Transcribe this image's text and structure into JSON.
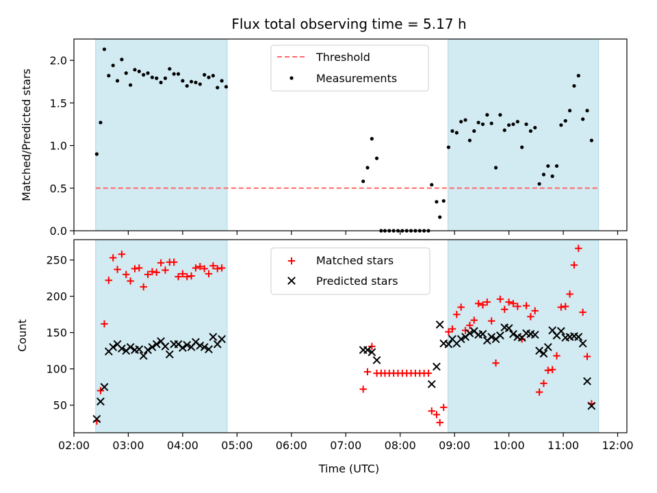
{
  "chart_data": [
    {
      "type": "scatter",
      "title": "Flux total observing time = 5.17 h",
      "xlabel": "",
      "ylabel": "Matched/Predicted stars",
      "xlim": [
        2.0,
        12.17
      ],
      "ylim": [
        0.0,
        2.25
      ],
      "yticks": [
        0.0,
        0.5,
        1.0,
        1.5,
        2.0
      ],
      "ytick_labels": [
        "0.0",
        "0.5",
        "1.0",
        "1.5",
        "2.0"
      ],
      "shaded_ranges": [
        [
          2.4,
          4.82
        ],
        [
          8.88,
          11.65
        ]
      ],
      "shade_color": "#add8e6",
      "threshold": {
        "name": "Threshold",
        "value": 0.5,
        "color": "#ff6666"
      },
      "legend": {
        "placement": "upper center",
        "entries": [
          "Threshold",
          "Measurements"
        ]
      },
      "series": [
        {
          "name": "Measurements",
          "color": "#000000",
          "marker": "dot",
          "points": [
            [
              2.42,
              0.9
            ],
            [
              2.49,
              1.27
            ],
            [
              2.56,
              2.13
            ],
            [
              2.64,
              1.82
            ],
            [
              2.72,
              1.94
            ],
            [
              2.8,
              1.76
            ],
            [
              2.88,
              2.01
            ],
            [
              2.96,
              1.85
            ],
            [
              3.04,
              1.71
            ],
            [
              3.12,
              1.89
            ],
            [
              3.2,
              1.87
            ],
            [
              3.28,
              1.83
            ],
            [
              3.36,
              1.85
            ],
            [
              3.44,
              1.8
            ],
            [
              3.52,
              1.79
            ],
            [
              3.6,
              1.74
            ],
            [
              3.68,
              1.79
            ],
            [
              3.76,
              1.9
            ],
            [
              3.84,
              1.84
            ],
            [
              3.92,
              1.84
            ],
            [
              4.0,
              1.76
            ],
            [
              4.08,
              1.7
            ],
            [
              4.16,
              1.75
            ],
            [
              4.24,
              1.74
            ],
            [
              4.32,
              1.72
            ],
            [
              4.4,
              1.83
            ],
            [
              4.48,
              1.8
            ],
            [
              4.56,
              1.82
            ],
            [
              4.64,
              1.68
            ],
            [
              4.72,
              1.76
            ],
            [
              4.8,
              1.69
            ],
            [
              7.32,
              0.58
            ],
            [
              7.4,
              0.74
            ],
            [
              7.48,
              1.08
            ],
            [
              7.57,
              0.85
            ],
            [
              7.65,
              0.0
            ],
            [
              7.72,
              0.0
            ],
            [
              7.8,
              0.0
            ],
            [
              7.88,
              0.0
            ],
            [
              7.96,
              0.0
            ],
            [
              8.04,
              0.0
            ],
            [
              8.12,
              0.0
            ],
            [
              8.2,
              0.0
            ],
            [
              8.28,
              0.0
            ],
            [
              8.36,
              0.0
            ],
            [
              8.44,
              0.0
            ],
            [
              8.52,
              0.0
            ],
            [
              8.58,
              0.54
            ],
            [
              8.67,
              0.34
            ],
            [
              8.73,
              0.16
            ],
            [
              8.8,
              0.35
            ],
            [
              8.89,
              0.98
            ],
            [
              8.96,
              1.17
            ],
            [
              9.04,
              1.15
            ],
            [
              9.12,
              1.28
            ],
            [
              9.2,
              1.3
            ],
            [
              9.28,
              1.06
            ],
            [
              9.36,
              1.17
            ],
            [
              9.44,
              1.27
            ],
            [
              9.52,
              1.25
            ],
            [
              9.6,
              1.36
            ],
            [
              9.68,
              1.26
            ],
            [
              9.76,
              0.74
            ],
            [
              9.84,
              1.36
            ],
            [
              9.92,
              1.18
            ],
            [
              10.0,
              1.24
            ],
            [
              10.08,
              1.25
            ],
            [
              10.16,
              1.28
            ],
            [
              10.24,
              0.98
            ],
            [
              10.32,
              1.25
            ],
            [
              10.4,
              1.17
            ],
            [
              10.48,
              1.21
            ],
            [
              10.56,
              0.55
            ],
            [
              10.64,
              0.66
            ],
            [
              10.72,
              0.76
            ],
            [
              10.8,
              0.64
            ],
            [
              10.88,
              0.76
            ],
            [
              10.96,
              1.24
            ],
            [
              11.04,
              1.29
            ],
            [
              11.12,
              1.41
            ],
            [
              11.2,
              1.7
            ],
            [
              11.28,
              1.82
            ],
            [
              11.36,
              1.31
            ],
            [
              11.44,
              1.41
            ],
            [
              11.52,
              1.06
            ]
          ]
        }
      ]
    },
    {
      "type": "scatter",
      "title": "",
      "xlabel": "Time (UTC)",
      "ylabel": "Count",
      "xlim": [
        2.0,
        12.17
      ],
      "ylim": [
        12,
        278
      ],
      "yticks": [
        50,
        100,
        150,
        200,
        250
      ],
      "ytick_labels": [
        "50",
        "100",
        "150",
        "200",
        "250"
      ],
      "xticks": [
        2,
        3,
        4,
        5,
        6,
        7,
        8,
        9,
        10,
        11,
        12
      ],
      "xtick_labels": [
        "02:00",
        "03:00",
        "04:00",
        "05:00",
        "06:00",
        "07:00",
        "08:00",
        "09:00",
        "10:00",
        "11:00",
        "12:00"
      ],
      "shaded_ranges": [
        [
          2.4,
          4.82
        ],
        [
          8.88,
          11.65
        ]
      ],
      "shade_color": "#add8e6",
      "legend": {
        "placement": "upper center",
        "entries": [
          "Matched stars",
          "Predicted stars"
        ]
      },
      "series": [
        {
          "name": "Matched stars",
          "color": "#ff0000",
          "marker": "plus",
          "points": [
            [
              2.42,
              28
            ],
            [
              2.49,
              70
            ],
            [
              2.56,
              162
            ],
            [
              2.64,
              222
            ],
            [
              2.72,
              253
            ],
            [
              2.8,
              237
            ],
            [
              2.88,
              258
            ],
            [
              2.96,
              230
            ],
            [
              3.04,
              221
            ],
            [
              3.12,
              238
            ],
            [
              3.2,
              239
            ],
            [
              3.28,
              213
            ],
            [
              3.36,
              230
            ],
            [
              3.44,
              234
            ],
            [
              3.52,
              233
            ],
            [
              3.6,
              246
            ],
            [
              3.68,
              236
            ],
            [
              3.76,
              247
            ],
            [
              3.84,
              247
            ],
            [
              3.92,
              227
            ],
            [
              4.0,
              231
            ],
            [
              4.08,
              227
            ],
            [
              4.16,
              228
            ],
            [
              4.24,
              239
            ],
            [
              4.32,
              241
            ],
            [
              4.4,
              238
            ],
            [
              4.48,
              231
            ],
            [
              4.56,
              242
            ],
            [
              4.64,
              238
            ],
            [
              4.72,
              239
            ],
            [
              7.32,
              72
            ],
            [
              7.4,
              96
            ],
            [
              7.48,
              131
            ],
            [
              7.57,
              94
            ],
            [
              7.65,
              94
            ],
            [
              7.72,
              94
            ],
            [
              7.8,
              94
            ],
            [
              7.88,
              94
            ],
            [
              7.96,
              94
            ],
            [
              8.04,
              94
            ],
            [
              8.12,
              94
            ],
            [
              8.2,
              94
            ],
            [
              8.28,
              94
            ],
            [
              8.36,
              94
            ],
            [
              8.44,
              94
            ],
            [
              8.52,
              94
            ],
            [
              8.58,
              42
            ],
            [
              8.67,
              37
            ],
            [
              8.73,
              26
            ],
            [
              8.8,
              47
            ],
            [
              8.89,
              151
            ],
            [
              8.96,
              155
            ],
            [
              9.04,
              175
            ],
            [
              9.12,
              185
            ],
            [
              9.2,
              153
            ],
            [
              9.28,
              160
            ],
            [
              9.36,
              167
            ],
            [
              9.44,
              190
            ],
            [
              9.52,
              188
            ],
            [
              9.6,
              192
            ],
            [
              9.68,
              166
            ],
            [
              9.76,
              108
            ],
            [
              9.84,
              196
            ],
            [
              9.92,
              182
            ],
            [
              10.0,
              192
            ],
            [
              10.08,
              190
            ],
            [
              10.16,
              186
            ],
            [
              10.24,
              141
            ],
            [
              10.32,
              187
            ],
            [
              10.4,
              172
            ],
            [
              10.48,
              180
            ],
            [
              10.56,
              68
            ],
            [
              10.64,
              80
            ],
            [
              10.72,
              98
            ],
            [
              10.8,
              99
            ],
            [
              10.88,
              118
            ],
            [
              10.96,
              185
            ],
            [
              11.04,
              186
            ],
            [
              11.12,
              203
            ],
            [
              11.2,
              243
            ],
            [
              11.28,
              266
            ],
            [
              11.36,
              178
            ],
            [
              11.44,
              117
            ],
            [
              11.52,
              52
            ]
          ]
        },
        {
          "name": "Predicted stars",
          "color": "#000000",
          "marker": "x",
          "points": [
            [
              2.42,
              31
            ],
            [
              2.49,
              55
            ],
            [
              2.56,
              75
            ],
            [
              2.64,
              124
            ],
            [
              2.72,
              130
            ],
            [
              2.8,
              134
            ],
            [
              2.88,
              128
            ],
            [
              2.96,
              125
            ],
            [
              3.04,
              130
            ],
            [
              3.12,
              126
            ],
            [
              3.2,
              127
            ],
            [
              3.28,
              118
            ],
            [
              3.36,
              126
            ],
            [
              3.44,
              130
            ],
            [
              3.52,
              134
            ],
            [
              3.6,
              138
            ],
            [
              3.68,
              131
            ],
            [
              3.76,
              120
            ],
            [
              3.84,
              134
            ],
            [
              3.92,
              134
            ],
            [
              4.0,
              129
            ],
            [
              4.08,
              133
            ],
            [
              4.16,
              130
            ],
            [
              4.24,
              137
            ],
            [
              4.32,
              132
            ],
            [
              4.4,
              130
            ],
            [
              4.48,
              127
            ],
            [
              4.56,
              144
            ],
            [
              4.64,
              134
            ],
            [
              4.72,
              141
            ],
            [
              7.32,
              126
            ],
            [
              7.4,
              126
            ],
            [
              7.48,
              123
            ],
            [
              7.57,
              112
            ],
            [
              8.58,
              79
            ],
            [
              8.67,
              103
            ],
            [
              8.73,
              161
            ],
            [
              8.8,
              135
            ],
            [
              8.89,
              134
            ],
            [
              8.96,
              141
            ],
            [
              9.04,
              135
            ],
            [
              9.12,
              141
            ],
            [
              9.2,
              144
            ],
            [
              9.28,
              149
            ],
            [
              9.36,
              152
            ],
            [
              9.44,
              147
            ],
            [
              9.52,
              148
            ],
            [
              9.6,
              139
            ],
            [
              9.68,
              144
            ],
            [
              9.76,
              141
            ],
            [
              9.84,
              146
            ],
            [
              9.92,
              157
            ],
            [
              10.0,
              156
            ],
            [
              10.08,
              148
            ],
            [
              10.16,
              144
            ],
            [
              10.24,
              143
            ],
            [
              10.32,
              149
            ],
            [
              10.4,
              148
            ],
            [
              10.48,
              147
            ],
            [
              10.56,
              125
            ],
            [
              10.64,
              121
            ],
            [
              10.72,
              130
            ],
            [
              10.8,
              153
            ],
            [
              10.88,
              146
            ],
            [
              10.96,
              152
            ],
            [
              11.04,
              143
            ],
            [
              11.12,
              144
            ],
            [
              11.2,
              145
            ],
            [
              11.28,
              144
            ],
            [
              11.36,
              135
            ],
            [
              11.44,
              83
            ],
            [
              11.52,
              49
            ]
          ]
        }
      ]
    }
  ]
}
